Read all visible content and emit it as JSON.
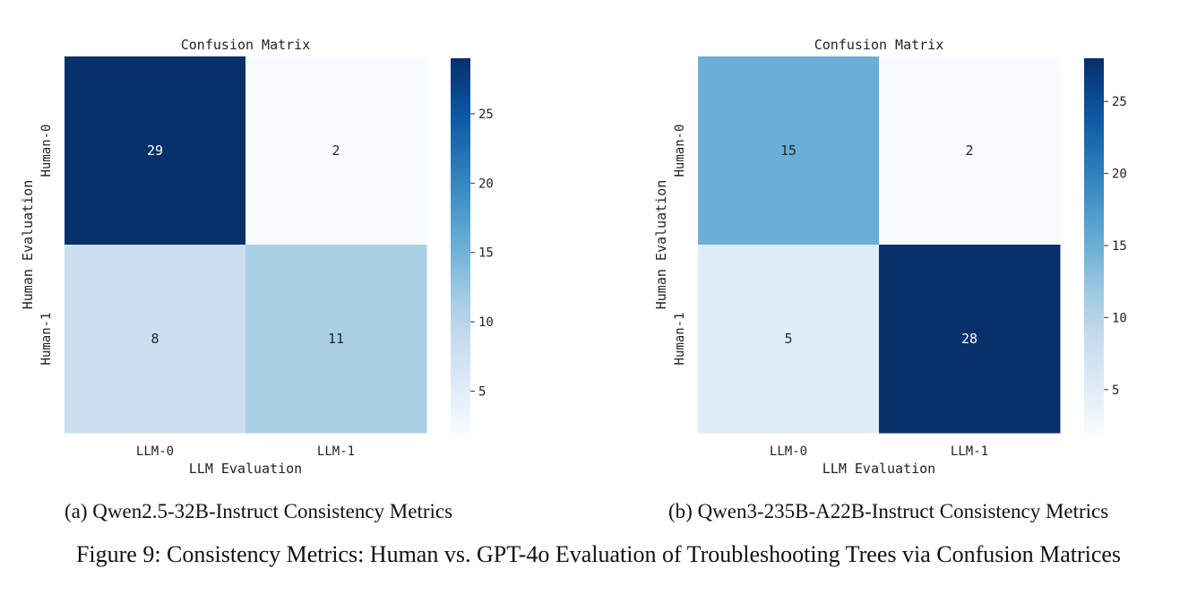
{
  "chart_data": [
    {
      "type": "heatmap",
      "title": "Confusion Matrix",
      "xlabel": "LLM Evaluation",
      "ylabel": "Human Evaluation",
      "x_categories": [
        "LLM-0",
        "LLM-1"
      ],
      "y_categories": [
        "Human-0",
        "Human-1"
      ],
      "values": [
        [
          29,
          2
        ],
        [
          8,
          11
        ]
      ],
      "colormap": "Blues",
      "colorbar": {
        "min": 2,
        "max": 29,
        "ticks": [
          5,
          10,
          15,
          20,
          25
        ]
      },
      "caption": "(a) Qwen2.5-32B-Instruct Consistency Metrics"
    },
    {
      "type": "heatmap",
      "title": "Confusion Matrix",
      "xlabel": "LLM Evaluation",
      "ylabel": "Human Evaluation",
      "x_categories": [
        "LLM-0",
        "LLM-1"
      ],
      "y_categories": [
        "Human-0",
        "Human-1"
      ],
      "values": [
        [
          15,
          2
        ],
        [
          5,
          28
        ]
      ],
      "colormap": "Blues",
      "colorbar": {
        "min": 2,
        "max": 28,
        "ticks": [
          5,
          10,
          15,
          20,
          25
        ]
      },
      "caption": "(b) Qwen3-235B-A22B-Instruct Consistency Metrics"
    }
  ],
  "figure_caption": "Figure 9: Consistency Metrics: Human vs. GPT-4o Evaluation of Troubleshooting Trees via Confusion Matrices"
}
